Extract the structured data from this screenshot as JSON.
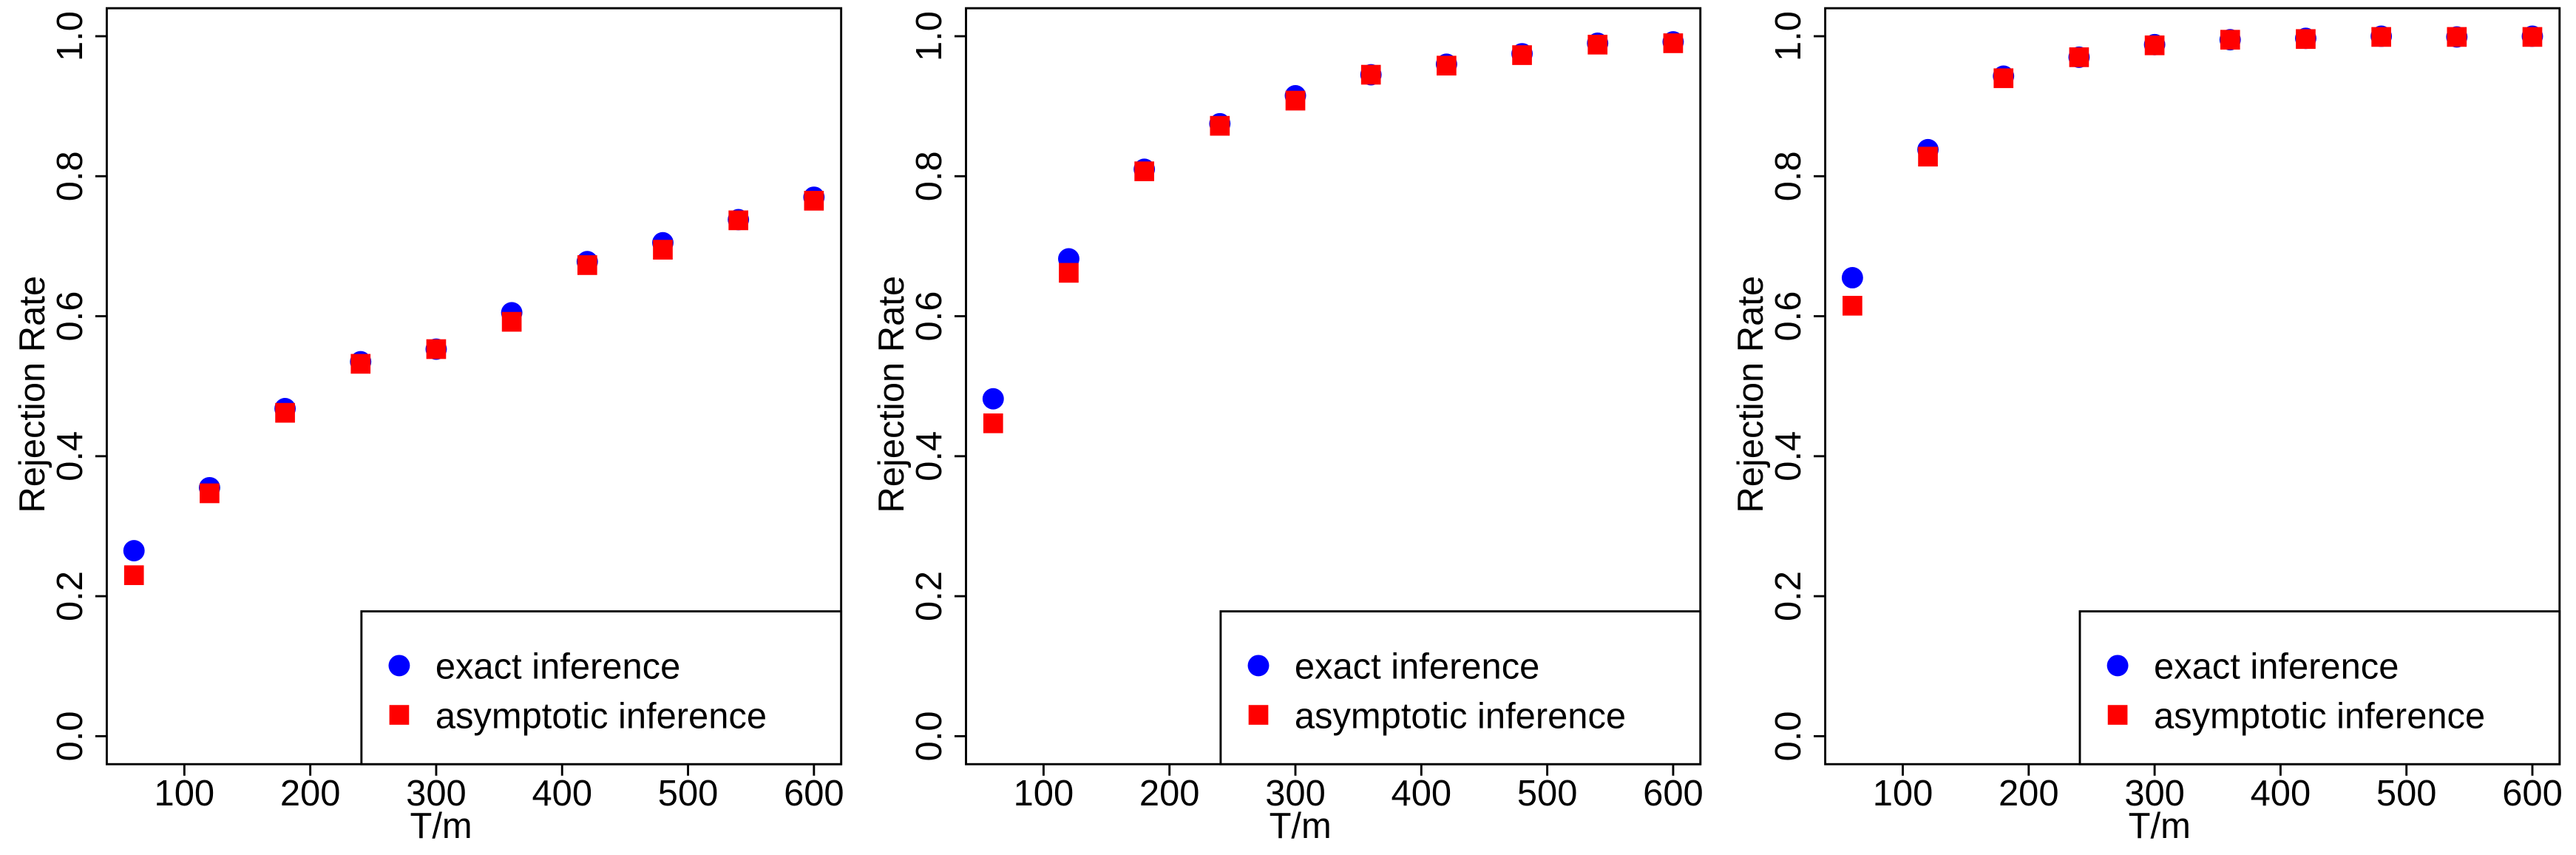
{
  "chart_data": [
    {
      "type": "scatter",
      "x": [
        60,
        120,
        180,
        240,
        300,
        360,
        420,
        480,
        540,
        600
      ],
      "xlabel": "T/m",
      "ylabel": "Rejection Rate",
      "series": [
        {
          "name": "exact inference",
          "color": "#0000ff",
          "marker": "circle",
          "values": [
            0.265,
            0.355,
            0.468,
            0.535,
            0.553,
            0.605,
            0.678,
            0.705,
            0.738,
            0.77
          ]
        },
        {
          "name": "asymptotic inference",
          "color": "#ff0000",
          "marker": "square",
          "values": [
            0.23,
            0.347,
            0.462,
            0.532,
            0.553,
            0.592,
            0.673,
            0.695,
            0.737,
            0.765
          ]
        }
      ],
      "xlim": [
        38.4,
        621.6
      ],
      "ylim": [
        -0.04,
        1.04
      ],
      "xticks": [
        100,
        200,
        300,
        400,
        500,
        600
      ],
      "yticks": [
        {
          "value": 0,
          "label": "0.0"
        },
        0.2,
        0.4,
        0.6,
        0.8,
        {
          "value": 1,
          "label": "1.0"
        }
      ],
      "legend": "bottom-right"
    },
    {
      "type": "scatter",
      "x": [
        60,
        120,
        180,
        240,
        300,
        360,
        420,
        480,
        540,
        600
      ],
      "xlabel": "T/m",
      "ylabel": "Rejection Rate",
      "series": [
        {
          "name": "exact inference",
          "color": "#0000ff",
          "marker": "circle",
          "values": [
            0.482,
            0.682,
            0.81,
            0.875,
            0.915,
            0.945,
            0.96,
            0.975,
            0.99,
            0.992
          ]
        },
        {
          "name": "asymptotic inference",
          "color": "#ff0000",
          "marker": "square",
          "values": [
            0.447,
            0.662,
            0.807,
            0.872,
            0.908,
            0.945,
            0.958,
            0.973,
            0.988,
            0.99
          ]
        }
      ],
      "xlim": [
        38.4,
        621.6
      ],
      "ylim": [
        -0.04,
        1.04
      ],
      "xticks": [
        100,
        200,
        300,
        400,
        500,
        600
      ],
      "yticks": [
        {
          "value": 0,
          "label": "0.0"
        },
        0.2,
        0.4,
        0.6,
        0.8,
        {
          "value": 1,
          "label": "1.0"
        }
      ],
      "legend": "bottom-right"
    },
    {
      "type": "scatter",
      "x": [
        60,
        120,
        180,
        240,
        300,
        360,
        420,
        480,
        540,
        600
      ],
      "xlabel": "T/m",
      "ylabel": "Rejection Rate",
      "series": [
        {
          "name": "exact inference",
          "color": "#0000ff",
          "marker": "circle",
          "values": [
            0.655,
            0.838,
            0.943,
            0.97,
            0.988,
            0.995,
            0.997,
            1.0,
            0.999,
            1.0
          ]
        },
        {
          "name": "asymptotic inference",
          "color": "#ff0000",
          "marker": "square",
          "values": [
            0.615,
            0.828,
            0.94,
            0.97,
            0.987,
            0.995,
            0.996,
            0.999,
            0.999,
            0.999
          ]
        }
      ],
      "xlim": [
        38.4,
        621.6
      ],
      "ylim": [
        -0.04,
        1.04
      ],
      "xticks": [
        100,
        200,
        300,
        400,
        500,
        600
      ],
      "yticks": [
        {
          "value": 0,
          "label": "0.0"
        },
        0.2,
        0.4,
        0.6,
        0.8,
        {
          "value": 1,
          "label": "1.0"
        }
      ],
      "legend": "bottom-right"
    }
  ]
}
